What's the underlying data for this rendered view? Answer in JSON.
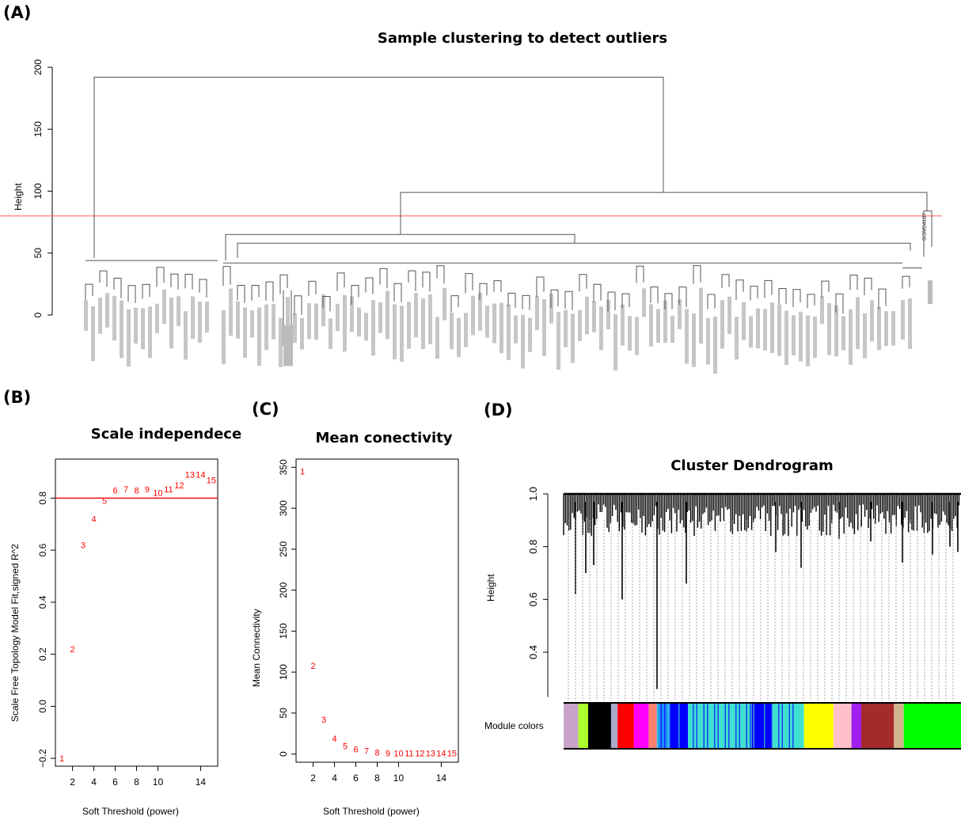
{
  "panels": {
    "a": {
      "letter": "(A)",
      "title": "Sample clustering to detect outliers",
      "ylabel": "Height",
      "sample_label": "GSM54187",
      "color_line": "#ff6b6b"
    },
    "b": {
      "letter": "(B)",
      "title": "Scale independece",
      "xlabel": "Soft Threshold (power)",
      "ylabel": "Scale Free Topology Model Fit,signed R^2",
      "point_color": "#ff0000"
    },
    "c": {
      "letter": "(C)",
      "title": "Mean conectivity",
      "xlabel": "Soft Threshold (power)",
      "ylabel": "Mean Connectivity",
      "point_color": "#ff0000"
    },
    "d": {
      "letter": "(D)",
      "title": "Cluster Dendrogram",
      "ylabel": "Height",
      "module_label": "Module colors"
    }
  },
  "chart_data": [
    {
      "id": "A",
      "type": "dendrogram",
      "title": "Sample clustering to detect outliers",
      "ylabel": "Height",
      "ylim": [
        0,
        200
      ],
      "yticks": [
        0,
        50,
        100,
        150,
        200
      ],
      "cut_height": 80,
      "top_merge_height": 192,
      "major_merges": [
        192,
        99,
        84,
        65,
        47
      ]
    },
    {
      "id": "B",
      "type": "scatter",
      "title": "Scale independece",
      "xlabel": "Soft Threshold (power)",
      "ylabel": "Scale Free Topology Model Fit,signed R^2",
      "xticks": [
        2,
        4,
        6,
        8,
        10,
        14
      ],
      "yticks": [
        -0.2,
        0.0,
        0.2,
        0.4,
        0.6,
        0.8
      ],
      "xlim": [
        0.4,
        15.6
      ],
      "ylim": [
        -0.23,
        0.95
      ],
      "hline": 0.8,
      "points": [
        {
          "x": 1,
          "y": -0.2,
          "label": "1"
        },
        {
          "x": 2,
          "y": 0.22,
          "label": "2"
        },
        {
          "x": 3,
          "y": 0.62,
          "label": "3"
        },
        {
          "x": 4,
          "y": 0.72,
          "label": "4"
        },
        {
          "x": 5,
          "y": 0.79,
          "label": "5"
        },
        {
          "x": 6,
          "y": 0.83,
          "label": "6"
        },
        {
          "x": 7,
          "y": 0.835,
          "label": "7"
        },
        {
          "x": 8,
          "y": 0.83,
          "label": "8"
        },
        {
          "x": 9,
          "y": 0.835,
          "label": "9"
        },
        {
          "x": 10,
          "y": 0.82,
          "label": "10"
        },
        {
          "x": 11,
          "y": 0.835,
          "label": "11"
        },
        {
          "x": 12,
          "y": 0.85,
          "label": "12"
        },
        {
          "x": 13,
          "y": 0.89,
          "label": "13"
        },
        {
          "x": 14,
          "y": 0.89,
          "label": "14"
        },
        {
          "x": 15,
          "y": 0.87,
          "label": "15"
        }
      ]
    },
    {
      "id": "C",
      "type": "scatter",
      "title": "Mean conectivity",
      "xlabel": "Soft Threshold (power)",
      "ylabel": "Mean Connectivity",
      "xticks": [
        2,
        4,
        6,
        8,
        10,
        14
      ],
      "yticks": [
        0,
        50,
        100,
        150,
        200,
        250,
        300,
        350
      ],
      "xlim": [
        0.4,
        15.6
      ],
      "ylim": [
        -10,
        360
      ],
      "points": [
        {
          "x": 1,
          "y": 345,
          "label": "1"
        },
        {
          "x": 2,
          "y": 108,
          "label": "2"
        },
        {
          "x": 3,
          "y": 42,
          "label": "3"
        },
        {
          "x": 4,
          "y": 19,
          "label": "4"
        },
        {
          "x": 5,
          "y": 10,
          "label": "5"
        },
        {
          "x": 6,
          "y": 6,
          "label": "6"
        },
        {
          "x": 7,
          "y": 4,
          "label": "7"
        },
        {
          "x": 8,
          "y": 2,
          "label": "8"
        },
        {
          "x": 9,
          "y": 1,
          "label": "9"
        },
        {
          "x": 10,
          "y": 1,
          "label": "10"
        },
        {
          "x": 11,
          "y": 1,
          "label": "11"
        },
        {
          "x": 12,
          "y": 1,
          "label": "12"
        },
        {
          "x": 13,
          "y": 1,
          "label": "13"
        },
        {
          "x": 14,
          "y": 1,
          "label": "14"
        },
        {
          "x": 15,
          "y": 1,
          "label": "15"
        }
      ]
    },
    {
      "id": "D",
      "type": "dendrogram",
      "title": "Cluster Dendrogram",
      "ylabel": "Height",
      "yticks": [
        0.4,
        0.6,
        0.8,
        1.0
      ],
      "ylim": [
        0.25,
        1.0
      ],
      "module_colors": [
        "#c8a2c8",
        "#adff2f",
        "#000000",
        "#a9a9c9",
        "#ff0000",
        "#ff00ff",
        "#fa8072",
        "#1e90ff",
        "#0000ff",
        "#40e0d0",
        "#0000ff",
        "#40e0d0",
        "#ffff00",
        "#ffc0cb",
        "#a020f0",
        "#a52a2a",
        "#d2b48c",
        "#00ff00"
      ]
    }
  ]
}
